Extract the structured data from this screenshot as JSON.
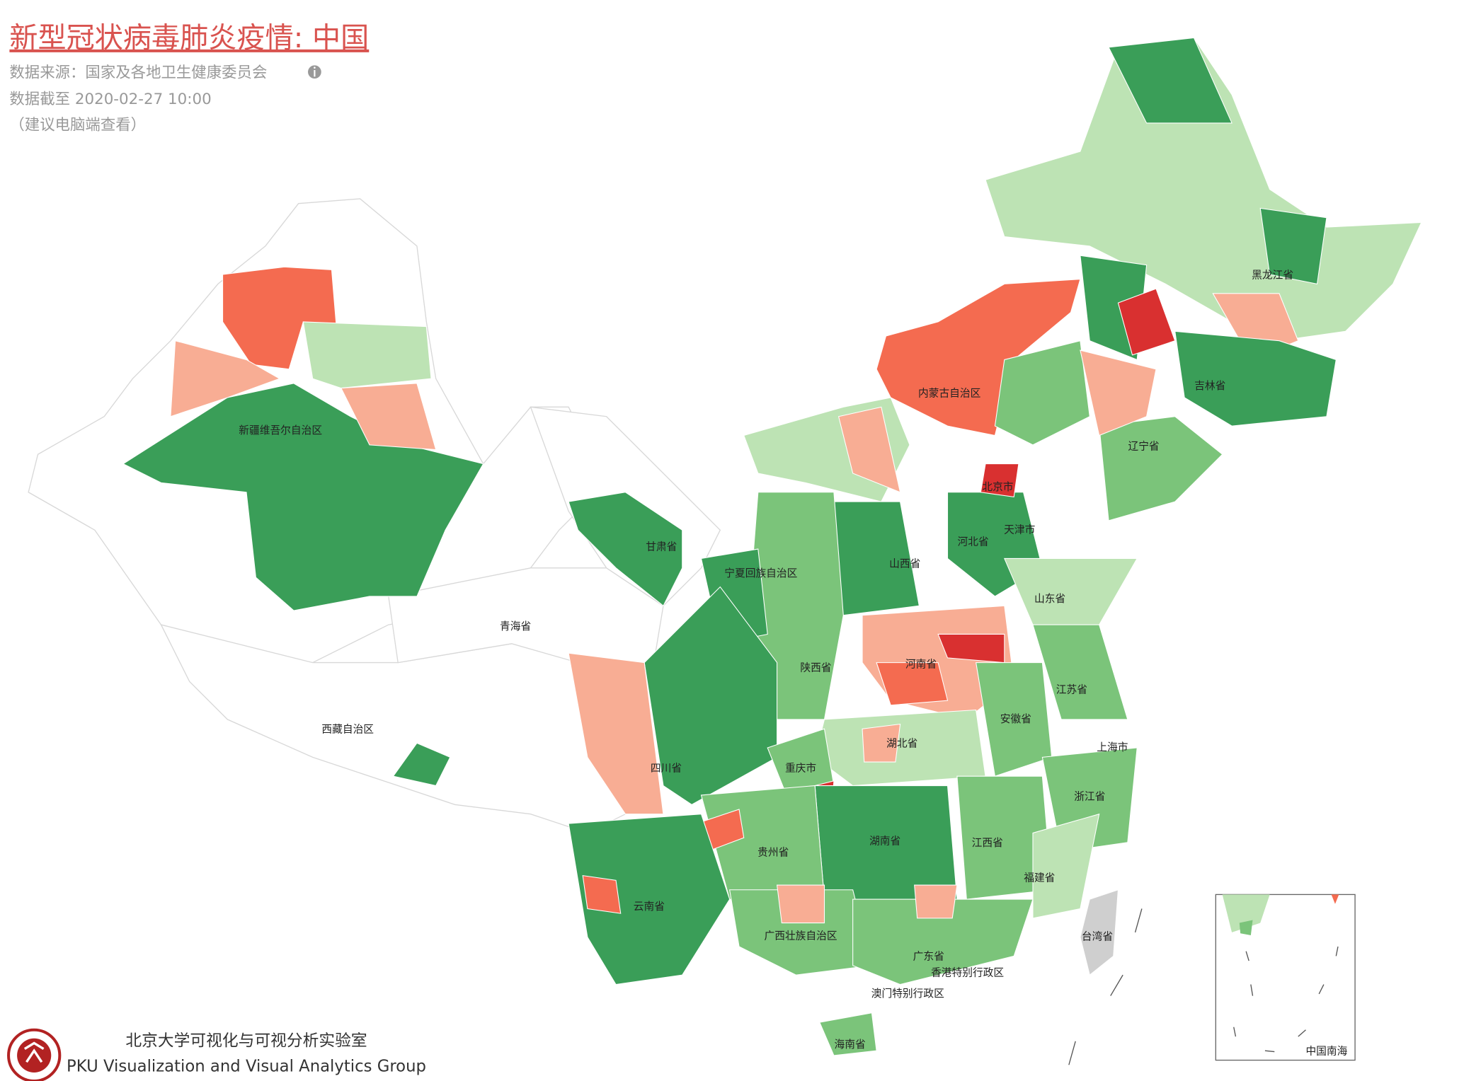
{
  "header": {
    "title": "新型冠状病毒肺炎疫情: 中国",
    "source": "数据来源：国家及各地卫生健康委员会",
    "updated": "数据截至 2020-02-27 10:00",
    "note": "（建议电脑端查看）"
  },
  "map": {
    "labels": [
      "内蒙古自治区",
      "黑龙江省",
      "吉林省",
      "辽宁省",
      "北京市",
      "天津市",
      "河北省",
      "山西省",
      "山东省",
      "新疆维吾尔自治区",
      "甘肃省",
      "宁夏回族自治区",
      "青海省",
      "陕西省",
      "河南省",
      "江苏省",
      "安徽省",
      "西藏自治区",
      "湖北省",
      "上海市",
      "四川省",
      "重庆市",
      "浙江省",
      "湖南省",
      "江西省",
      "贵州省",
      "福建省",
      "云南省",
      "台湾省",
      "广西壮族自治区",
      "广东省",
      "香港特别行政区",
      "澳门特别行政区",
      "海南省"
    ],
    "inset_label": "中国南海"
  },
  "footer": {
    "org_cn": "北京大学可视化与可视分析实验室",
    "org_en": "PKU Visualization and Visual Analytics Group"
  }
}
